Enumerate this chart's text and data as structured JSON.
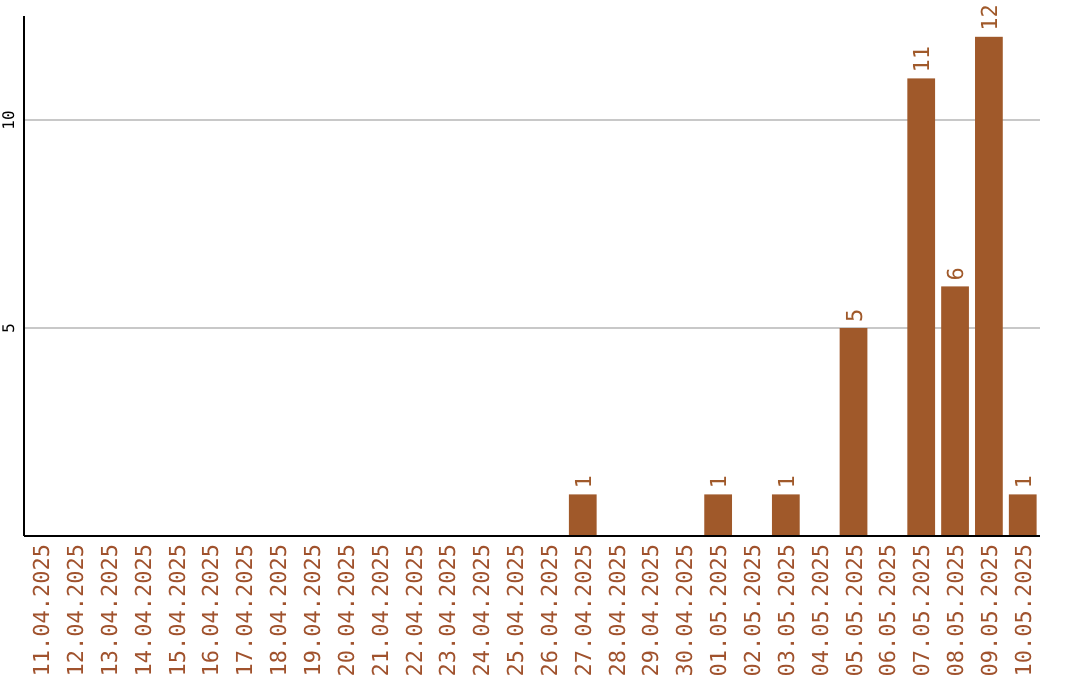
{
  "chart_data": {
    "type": "bar",
    "categories": [
      "11.04.2025",
      "12.04.2025",
      "13.04.2025",
      "14.04.2025",
      "15.04.2025",
      "16.04.2025",
      "17.04.2025",
      "18.04.2025",
      "19.04.2025",
      "20.04.2025",
      "21.04.2025",
      "22.04.2025",
      "23.04.2025",
      "24.04.2025",
      "25.04.2025",
      "26.04.2025",
      "27.04.2025",
      "28.04.2025",
      "29.04.2025",
      "30.04.2025",
      "01.05.2025",
      "02.05.2025",
      "03.05.2025",
      "04.05.2025",
      "05.05.2025",
      "06.05.2025",
      "07.05.2025",
      "08.05.2025",
      "09.05.2025",
      "10.05.2025"
    ],
    "values": [
      0,
      0,
      0,
      0,
      0,
      0,
      0,
      0,
      0,
      0,
      0,
      0,
      0,
      0,
      0,
      0,
      1,
      0,
      0,
      0,
      1,
      0,
      1,
      0,
      5,
      0,
      11,
      6,
      12,
      1
    ],
    "value_labels": [
      null,
      null,
      null,
      null,
      null,
      null,
      null,
      null,
      null,
      null,
      null,
      null,
      null,
      null,
      null,
      null,
      "1",
      null,
      null,
      null,
      "1",
      null,
      "1",
      null,
      "5",
      null,
      "11",
      "6",
      "12",
      "1"
    ],
    "color": "#a0592a",
    "ylim": [
      0,
      12.5
    ],
    "yticks": [
      5,
      10
    ],
    "grid": "y"
  }
}
